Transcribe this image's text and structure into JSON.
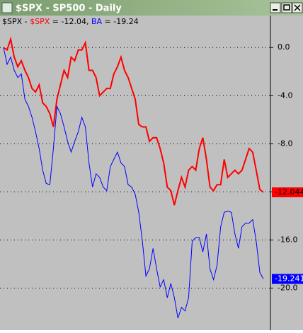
{
  "window_title": "$SPX - SP500 - Daily",
  "chart_data": {
    "type": "line",
    "header": "$SPX -",
    "ylim": [
      -23.5,
      1.6
    ],
    "yticks": [
      {
        "value": 0,
        "label": "0.0"
      },
      {
        "value": -4,
        "label": "-4.0"
      },
      {
        "value": -8,
        "label": "-8.0"
      },
      {
        "value": -12,
        "label": "-12.0"
      },
      {
        "value": -16,
        "label": "-16.0"
      },
      {
        "value": -20,
        "label": "-20.0"
      }
    ],
    "grid": true,
    "series": [
      {
        "name": "$SPX",
        "color": "#ff0000",
        "legend_value": -12.04,
        "end_label": -12.044,
        "values": [
          0,
          -0.2,
          0.7,
          -0.8,
          -1.6,
          -1.1,
          -1.9,
          -2.5,
          -3.4,
          -3.7,
          -3.1,
          -4.6,
          -4.9,
          -5.5,
          -6.6,
          -4.3,
          -3.1,
          -1.9,
          -2.5,
          -0.8,
          -1.1,
          -0.2,
          -0.2,
          0.4,
          -1.9,
          -1.9,
          -2.5,
          -4.0,
          -3.7,
          -3.4,
          -3.4,
          -2.2,
          -1.6,
          -0.8,
          -1.9,
          -2.5,
          -3.4,
          -4.3,
          -6.4,
          -6.6,
          -6.6,
          -7.8,
          -7.5,
          -7.5,
          -8.4,
          -9.6,
          -11.6,
          -11.9,
          -13.1,
          -11.9,
          -10.8,
          -11.6,
          -10.2,
          -9.9,
          -10.2,
          -8.4,
          -7.5,
          -9.3,
          -11.6,
          -11.9,
          -11.4,
          -11.4,
          -9.3,
          -10.8,
          -10.5,
          -10.2,
          -10.5,
          -10.2,
          -9.3,
          -8.4,
          -8.7,
          -10.2,
          -11.8,
          -12.04
        ]
      },
      {
        "name": "BA",
        "color": "#0000ff",
        "legend_value": -19.24,
        "end_label": -19.241,
        "values": [
          0,
          -1.4,
          -0.8,
          -1.9,
          -2.5,
          -2.2,
          -4.3,
          -4.9,
          -5.8,
          -7.0,
          -8.4,
          -10.2,
          -11.3,
          -11.4,
          -8.4,
          -4.9,
          -5.5,
          -6.6,
          -7.8,
          -8.7,
          -7.8,
          -7.0,
          -5.8,
          -6.6,
          -9.6,
          -11.6,
          -10.5,
          -10.8,
          -11.6,
          -11.9,
          -9.9,
          -9.3,
          -8.7,
          -9.6,
          -9.9,
          -11.4,
          -11.6,
          -12.2,
          -13.7,
          -16.1,
          -19.0,
          -18.4,
          -16.7,
          -18.4,
          -19.9,
          -19.3,
          -20.8,
          -19.6,
          -20.8,
          -22.5,
          -21.6,
          -21.9,
          -20.8,
          -16.1,
          -15.8,
          -15.8,
          -17.0,
          -15.5,
          -18.4,
          -19.3,
          -18.1,
          -14.9,
          -13.7,
          -13.6,
          -13.7,
          -15.5,
          -16.7,
          -14.9,
          -14.6,
          -14.6,
          -14.3,
          -16.1,
          -18.7,
          -19.24
        ]
      }
    ]
  }
}
